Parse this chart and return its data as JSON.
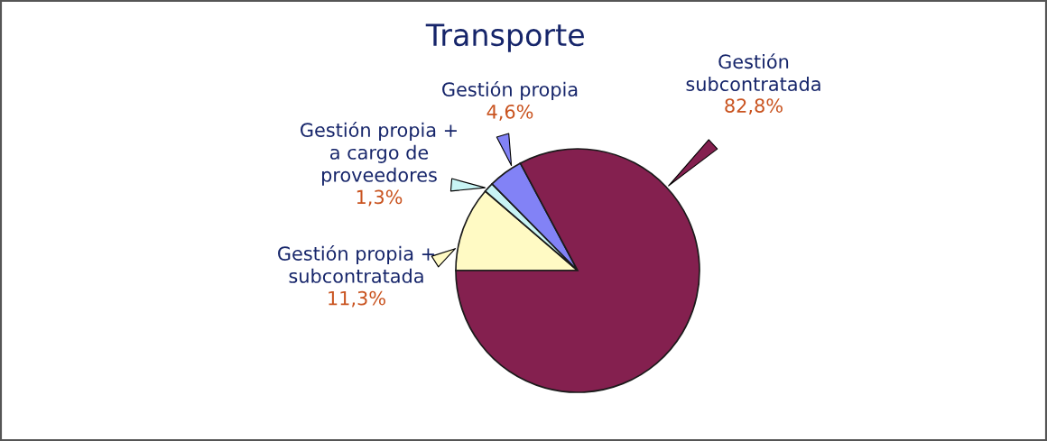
{
  "chart_data": {
    "type": "pie",
    "title": "Transporte",
    "categories": [
      "Gestión propia +\nsubcontratada",
      "Gestión propia +\na cargo de\nproveedores",
      "Gestión propia",
      "Gestión\nsubcontratada"
    ],
    "values": [
      11.3,
      1.3,
      4.6,
      82.8
    ],
    "colors": [
      "#fffac4",
      "#c8f4f4",
      "#8282f6",
      "#84204f"
    ],
    "value_labels": [
      "11,3%",
      "1,3%",
      "4,6%",
      "82,8%"
    ]
  }
}
